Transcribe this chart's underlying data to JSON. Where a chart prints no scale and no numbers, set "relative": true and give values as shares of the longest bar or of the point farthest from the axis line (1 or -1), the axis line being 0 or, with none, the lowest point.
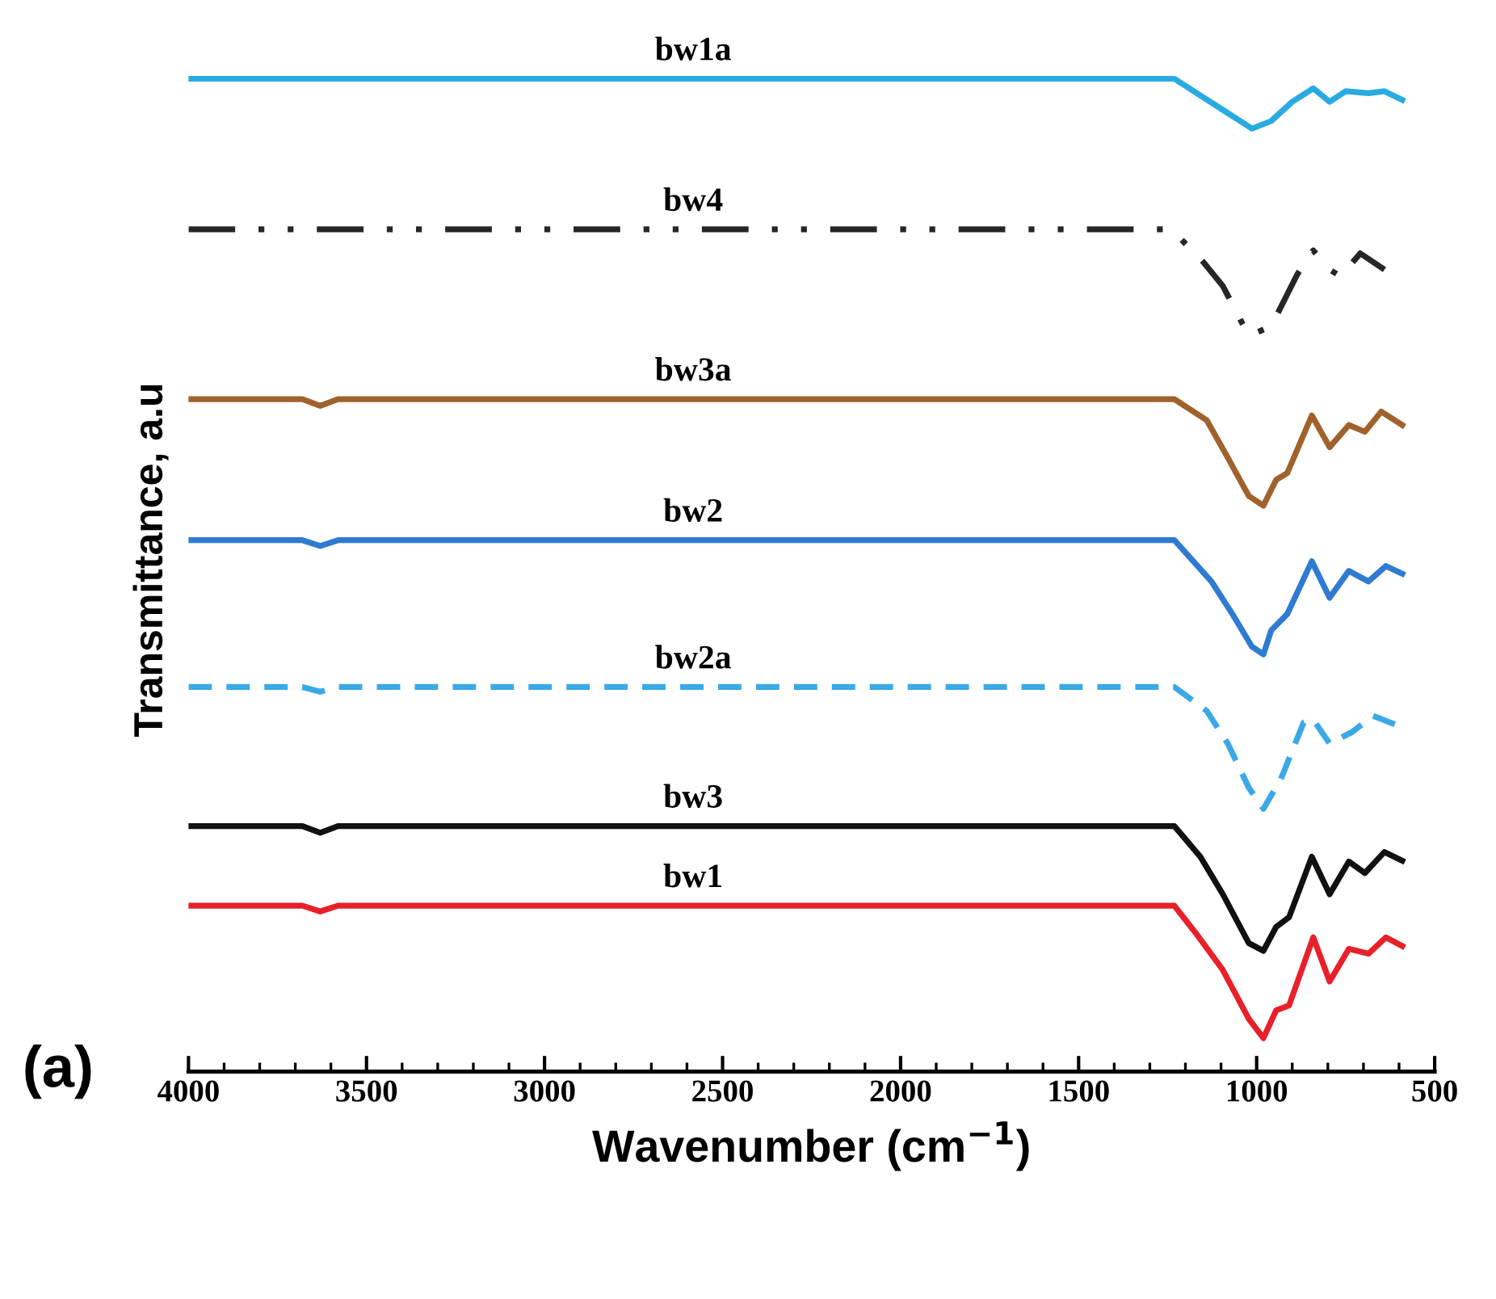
{
  "chart_data": {
    "type": "line",
    "relative": true,
    "xlabel": "Wavenumber (cm$^{−1}$)",
    "ylabel": "Transmittance, a.u",
    "xlim": [
      4000,
      500
    ],
    "xticks": [
      4000,
      3500,
      3000,
      2500,
      2000,
      1500,
      1000,
      500
    ],
    "tick_labels": "x",
    "grid": false,
    "legend": false,
    "marker": "none",
    "annotations": [
      "(a)"
    ],
    "series": [
      {
        "name": "bw1a",
        "color": "#29abe2",
        "line_style": "solid",
        "x": [
          4000,
          1231,
          1013,
          959,
          900,
          841,
          795,
          750,
          686,
          641,
          591
        ],
        "values": [
          1.0,
          1.0,
          0.948,
          0.956,
          0.976,
          0.99,
          0.976,
          0.987,
          0.985,
          0.987,
          0.978
        ]
      },
      {
        "name": "bw4",
        "color": "#262626",
        "line_style": "dashdotdot",
        "x": [
          4000,
          1240,
          1218,
          1150,
          1095,
          1022,
          959,
          886,
          841,
          795,
          764,
          709,
          641
        ],
        "values": [
          0.843,
          0.843,
          0.835,
          0.809,
          0.784,
          0.732,
          0.742,
          0.796,
          0.821,
          0.801,
          0.794,
          0.818,
          0.801
        ]
      },
      {
        "name": "bw3a",
        "color": "#a0622d",
        "line_style": "solid",
        "x": [
          4000,
          3680,
          3630,
          3580,
          1231,
          1140,
          1081,
          1022,
          981,
          945,
          914,
          845,
          795,
          741,
          696,
          650,
          591
        ],
        "values": [
          0.666,
          0.666,
          0.659,
          0.666,
          0.666,
          0.644,
          0.605,
          0.565,
          0.555,
          0.582,
          0.589,
          0.649,
          0.616,
          0.639,
          0.632,
          0.653,
          0.639
        ]
      },
      {
        "name": "bw2",
        "color": "#2f7bd1",
        "line_style": "solid",
        "x": [
          4000,
          3680,
          3630,
          3580,
          1231,
          1127,
          1068,
          1013,
          981,
          959,
          914,
          845,
          795,
          741,
          686,
          637,
          591
        ],
        "values": [
          0.519,
          0.519,
          0.513,
          0.519,
          0.519,
          0.476,
          0.442,
          0.408,
          0.4,
          0.425,
          0.442,
          0.497,
          0.459,
          0.487,
          0.476,
          0.492,
          0.484
        ]
      },
      {
        "name": "bw2a",
        "color": "#3aa9e6",
        "line_style": "dashed",
        "x": [
          4000,
          3680,
          3630,
          3580,
          1231,
          1140,
          1081,
          1022,
          981,
          932,
          868,
          841,
          795,
          732,
          673,
          591
        ],
        "values": [
          0.366,
          0.366,
          0.361,
          0.366,
          0.366,
          0.341,
          0.307,
          0.261,
          0.239,
          0.27,
          0.329,
          0.332,
          0.307,
          0.319,
          0.336,
          0.324
        ]
      },
      {
        "name": "bw3",
        "color": "#111111",
        "line_style": "solid",
        "x": [
          4000,
          3680,
          3630,
          3580,
          1231,
          1158,
          1095,
          1022,
          981,
          945,
          909,
          845,
          795,
          741,
          696,
          641,
          591
        ],
        "values": [
          0.221,
          0.221,
          0.214,
          0.221,
          0.221,
          0.189,
          0.15,
          0.099,
          0.091,
          0.116,
          0.126,
          0.189,
          0.15,
          0.184,
          0.172,
          0.194,
          0.185
        ]
      },
      {
        "name": "bw1",
        "color": "#e8202a",
        "line_style": "solid",
        "x": [
          4000,
          3680,
          3630,
          3580,
          1231,
          1172,
          1095,
          1022,
          981,
          945,
          909,
          841,
          795,
          741,
          686,
          637,
          591
        ],
        "values": [
          0.138,
          0.138,
          0.132,
          0.138,
          0.138,
          0.11,
          0.071,
          0.02,
          0.0,
          0.029,
          0.034,
          0.105,
          0.059,
          0.093,
          0.088,
          0.105,
          0.096
        ]
      }
    ]
  }
}
